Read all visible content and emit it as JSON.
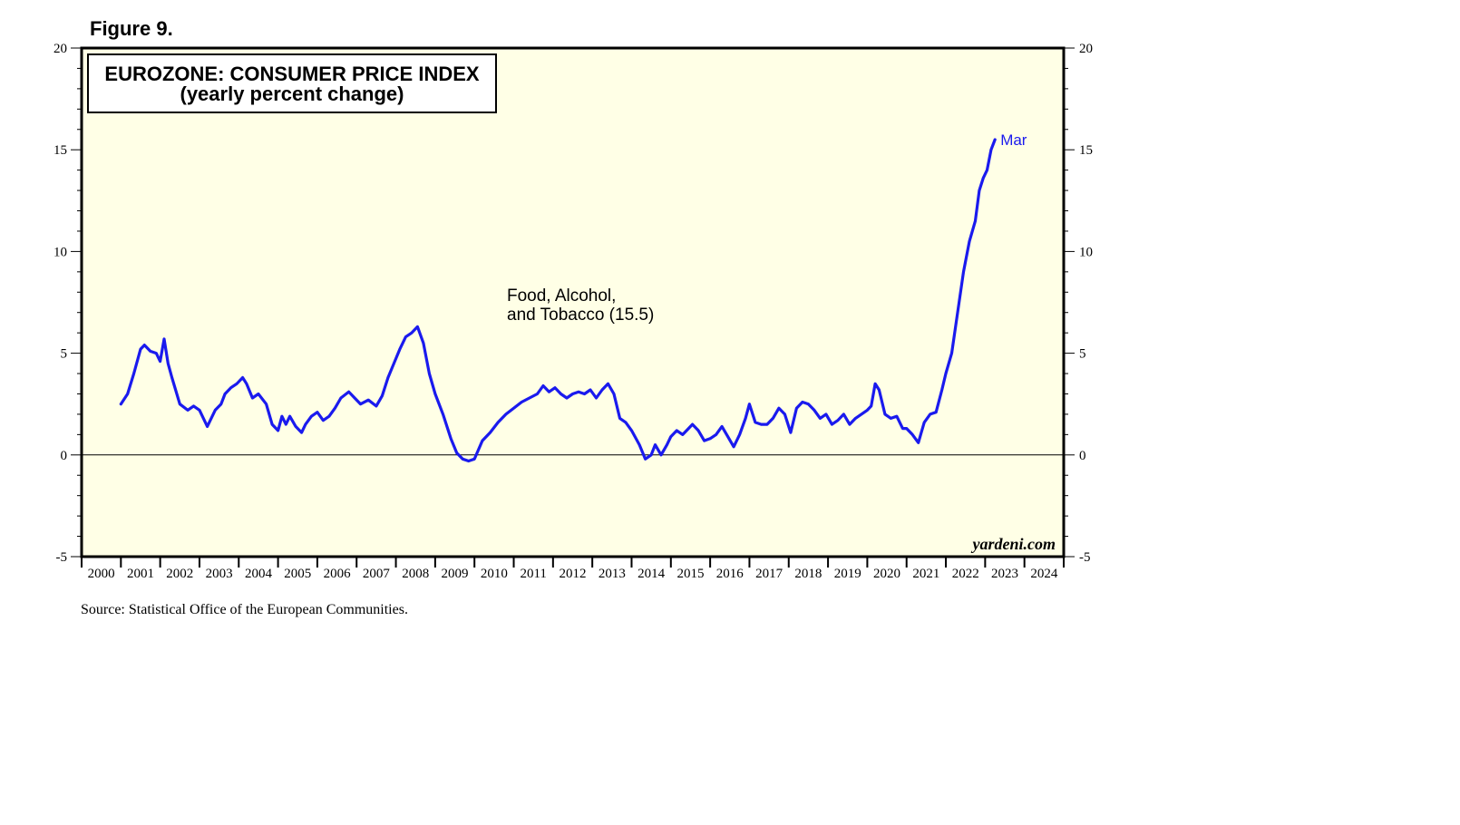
{
  "figure_label": "Figure 9.",
  "source": "Source: Statistical Office of the European Communities.",
  "credit": "yardeni.com",
  "colors": {
    "line": "#1a1aee",
    "plot_bg": "#ffffe6",
    "axis": "#000000"
  },
  "chart_data": {
    "type": "line",
    "title": "EUROZONE: CONSUMER PRICE INDEX",
    "subtitle": "(yearly percent change)",
    "ylim": [
      -5,
      20
    ],
    "xlim": [
      2000.0,
      2025.0
    ],
    "y_ticks": [
      -5,
      0,
      5,
      10,
      15,
      20
    ],
    "x_tick_labels": [
      "2000",
      "2001",
      "2002",
      "2003",
      "2004",
      "2005",
      "2006",
      "2007",
      "2008",
      "2009",
      "2010",
      "2011",
      "2012",
      "2013",
      "2014",
      "2015",
      "2016",
      "2017",
      "2018",
      "2019",
      "2020",
      "2021",
      "2022",
      "2023",
      "2024"
    ],
    "annotation": [
      "Food, Alcohol,",
      "and Tobacco (15.5)"
    ],
    "end_label": "Mar",
    "grid": false,
    "reference_line": 0,
    "series": [
      {
        "x": [
          2001.0,
          2001.17,
          2001.33,
          2001.5,
          2001.6,
          2001.75,
          2001.9,
          2002.0,
          2002.1,
          2002.2,
          2002.3,
          2002.5,
          2002.7,
          2002.85,
          2003.0,
          2003.2,
          2003.4,
          2003.55,
          2003.65,
          2003.8,
          2003.95,
          2004.1,
          2004.2,
          2004.35,
          2004.5,
          2004.7,
          2004.85,
          2005.0,
          2005.1,
          2005.2,
          2005.3,
          2005.45,
          2005.6,
          2005.7,
          2005.85,
          2006.0,
          2006.15,
          2006.3,
          2006.45,
          2006.6,
          2006.8,
          2006.95,
          2007.1,
          2007.3,
          2007.5,
          2007.65,
          2007.8,
          2007.95,
          2008.1,
          2008.25,
          2008.4,
          2008.55,
          2008.7,
          2008.85,
          2009.0,
          2009.2,
          2009.4,
          2009.55,
          2009.7,
          2009.85,
          2010.0,
          2010.2,
          2010.4,
          2010.6,
          2010.8,
          2011.0,
          2011.2,
          2011.4,
          2011.6,
          2011.75,
          2011.9,
          2012.05,
          2012.2,
          2012.35,
          2012.5,
          2012.65,
          2012.8,
          2012.95,
          2013.1,
          2013.25,
          2013.4,
          2013.55,
          2013.7,
          2013.85,
          2014.0,
          2014.2,
          2014.35,
          2014.5,
          2014.6,
          2014.75,
          2014.9,
          2015.0,
          2015.15,
          2015.3,
          2015.45,
          2015.55,
          2015.7,
          2015.85,
          2016.0,
          2016.15,
          2016.3,
          2016.45,
          2016.6,
          2016.75,
          2016.9,
          2017.0,
          2017.15,
          2017.3,
          2017.45,
          2017.6,
          2017.75,
          2017.9,
          2018.05,
          2018.2,
          2018.35,
          2018.5,
          2018.65,
          2018.8,
          2018.95,
          2019.1,
          2019.25,
          2019.4,
          2019.55,
          2019.7,
          2019.85,
          2020.0,
          2020.1,
          2020.2,
          2020.3,
          2020.45,
          2020.6,
          2020.75,
          2020.9,
          2021.0,
          2021.15,
          2021.3,
          2021.45,
          2021.6,
          2021.75,
          2021.9,
          2022.0,
          2022.15,
          2022.3,
          2022.45,
          2022.6,
          2022.75,
          2022.85,
          2022.95,
          2023.05,
          2023.15,
          2023.25
        ],
        "y": [
          2.5,
          3.0,
          4.0,
          5.2,
          5.4,
          5.1,
          5.0,
          4.6,
          5.7,
          4.5,
          3.8,
          2.5,
          2.2,
          2.4,
          2.2,
          1.4,
          2.2,
          2.5,
          3.0,
          3.3,
          3.5,
          3.8,
          3.5,
          2.8,
          3.0,
          2.5,
          1.5,
          1.2,
          1.9,
          1.5,
          1.9,
          1.4,
          1.1,
          1.5,
          1.9,
          2.1,
          1.7,
          1.9,
          2.3,
          2.8,
          3.1,
          2.8,
          2.5,
          2.7,
          2.4,
          2.9,
          3.8,
          4.5,
          5.2,
          5.8,
          6.0,
          6.3,
          5.5,
          4.0,
          3.0,
          2.0,
          0.8,
          0.1,
          -0.2,
          -0.3,
          -0.2,
          0.7,
          1.1,
          1.6,
          2.0,
          2.3,
          2.6,
          2.8,
          3.0,
          3.4,
          3.1,
          3.3,
          3.0,
          2.8,
          3.0,
          3.1,
          3.0,
          3.2,
          2.8,
          3.2,
          3.5,
          3.0,
          1.8,
          1.6,
          1.2,
          0.5,
          -0.2,
          0.0,
          0.5,
          0.0,
          0.5,
          0.9,
          1.2,
          1.0,
          1.3,
          1.5,
          1.2,
          0.7,
          0.8,
          1.0,
          1.4,
          0.9,
          0.4,
          1.0,
          1.8,
          2.5,
          1.6,
          1.5,
          1.5,
          1.8,
          2.3,
          2.0,
          1.1,
          2.3,
          2.6,
          2.5,
          2.2,
          1.8,
          2.0,
          1.5,
          1.7,
          2.0,
          1.5,
          1.8,
          2.0,
          2.2,
          2.4,
          3.5,
          3.2,
          2.0,
          1.8,
          1.9,
          1.3,
          1.3,
          1.0,
          0.6,
          1.6,
          2.0,
          2.1,
          3.2,
          4.0,
          5.0,
          7.0,
          9.0,
          10.5,
          11.5,
          13.0,
          13.6,
          14.0,
          15.0,
          15.5
        ]
      }
    ]
  }
}
